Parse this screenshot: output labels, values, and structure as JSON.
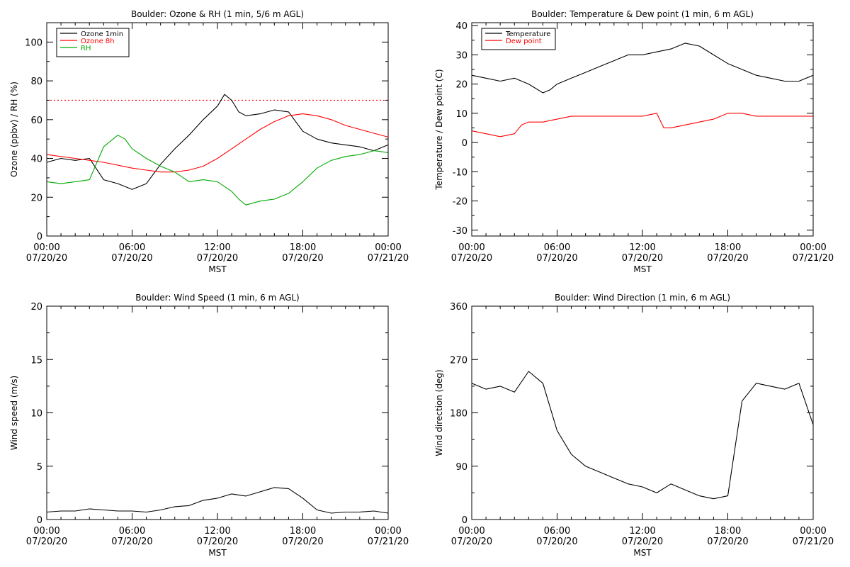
{
  "chart_data": [
    {
      "type": "line",
      "title": "Boulder: Ozone & RH (1 min, 5/6 m AGL)",
      "xlabel": "MST",
      "ylabel": "Ozone (ppbv) / RH (%)",
      "ylim": [
        0,
        110
      ],
      "yticks": [
        0,
        20,
        40,
        60,
        80,
        100
      ],
      "xlim_hours": [
        0,
        24
      ],
      "xticks": [
        {
          "hour": 0,
          "time": "00:00",
          "date": "07/20/20"
        },
        {
          "hour": 6,
          "time": "06:00",
          "date": "07/20/20"
        },
        {
          "hour": 12,
          "time": "12:00",
          "date": "07/20/20"
        },
        {
          "hour": 18,
          "time": "18:00",
          "date": "07/20/20"
        },
        {
          "hour": 24,
          "time": "00:00",
          "date": "07/21/20"
        }
      ],
      "legend": "top-left",
      "reference_line": {
        "y": 70,
        "color": "#ff0000",
        "style": "dotted"
      },
      "series": [
        {
          "name": "Ozone 1min",
          "color": "#000000",
          "x": [
            0,
            1,
            2,
            3,
            4,
            5,
            6,
            7,
            8,
            9,
            10,
            11,
            12,
            12.5,
            13,
            13.5,
            14,
            15,
            16,
            17,
            18,
            19,
            20,
            21,
            22,
            23,
            24
          ],
          "y": [
            38,
            40,
            39,
            40,
            29,
            27,
            24,
            27,
            37,
            45,
            52,
            60,
            67,
            73,
            70,
            64,
            62,
            63,
            65,
            64,
            54,
            50,
            48,
            47,
            46,
            44,
            47
          ]
        },
        {
          "name": "Ozone 8h",
          "color": "#ff0000",
          "x": [
            0,
            2,
            4,
            6,
            7,
            8,
            9,
            10,
            11,
            12,
            13,
            14,
            15,
            16,
            17,
            18,
            19,
            20,
            21,
            22,
            23,
            24
          ],
          "y": [
            42,
            40,
            38,
            35,
            34,
            33,
            33,
            34,
            36,
            40,
            45,
            50,
            55,
            59,
            62,
            63,
            62,
            60,
            57,
            55,
            53,
            51
          ]
        },
        {
          "name": "RH",
          "color": "#00aa00",
          "x": [
            0,
            1,
            2,
            3,
            4,
            5,
            5.5,
            6,
            7,
            8,
            9,
            10,
            11,
            12,
            13,
            13.5,
            14,
            15,
            16,
            17,
            18,
            19,
            20,
            21,
            22,
            23,
            24
          ],
          "y": [
            28,
            27,
            28,
            29,
            46,
            52,
            50,
            45,
            40,
            36,
            33,
            28,
            29,
            28,
            23,
            19,
            16,
            18,
            19,
            22,
            28,
            35,
            39,
            41,
            42,
            44,
            43
          ]
        }
      ]
    },
    {
      "type": "line",
      "title": "Boulder: Temperature & Dew point (1 min, 6 m AGL)",
      "xlabel": "MST",
      "ylabel": "Temperature / Dew point (C)",
      "ylim": [
        -32,
        41
      ],
      "yticks": [
        -30,
        -20,
        -10,
        0,
        10,
        20,
        30,
        40
      ],
      "xlim_hours": [
        0,
        24
      ],
      "xticks": [
        {
          "hour": 0,
          "time": "00:00",
          "date": "07/20/20"
        },
        {
          "hour": 6,
          "time": "06:00",
          "date": "07/20/20"
        },
        {
          "hour": 12,
          "time": "12:00",
          "date": "07/20/20"
        },
        {
          "hour": 18,
          "time": "18:00",
          "date": "07/20/20"
        },
        {
          "hour": 24,
          "time": "00:00",
          "date": "07/21/20"
        }
      ],
      "legend": "top-left",
      "series": [
        {
          "name": "Temperature",
          "color": "#000000",
          "x": [
            0,
            1,
            2,
            3,
            4,
            5,
            5.5,
            6,
            7,
            8,
            9,
            10,
            11,
            12,
            13,
            14,
            15,
            16,
            17,
            18,
            19,
            20,
            21,
            22,
            23,
            24
          ],
          "y": [
            23,
            22,
            21,
            22,
            20,
            17,
            18,
            20,
            22,
            24,
            26,
            28,
            30,
            30,
            31,
            32,
            34,
            33,
            30,
            27,
            25,
            23,
            22,
            21,
            21,
            23
          ]
        },
        {
          "name": "Dew point",
          "color": "#ff0000",
          "x": [
            0,
            1,
            2,
            3,
            3.5,
            4,
            5,
            6,
            7,
            8,
            9,
            10,
            11,
            12,
            13,
            13.5,
            14,
            15,
            16,
            17,
            18,
            19,
            20,
            21,
            22,
            23,
            24
          ],
          "y": [
            4,
            3,
            2,
            3,
            6,
            7,
            7,
            8,
            9,
            9,
            9,
            9,
            9,
            9,
            10,
            5,
            5,
            6,
            7,
            8,
            10,
            10,
            9,
            9,
            9,
            9,
            9
          ]
        }
      ]
    },
    {
      "type": "line",
      "title": "Boulder: Wind Speed (1 min, 6 m AGL)",
      "xlabel": "MST",
      "ylabel": "Wind speed (m/s)",
      "ylim": [
        0,
        20
      ],
      "yticks": [
        0,
        5,
        10,
        15,
        20
      ],
      "xlim_hours": [
        0,
        24
      ],
      "xticks": [
        {
          "hour": 0,
          "time": "00:00",
          "date": "07/20/20"
        },
        {
          "hour": 6,
          "time": "06:00",
          "date": "07/20/20"
        },
        {
          "hour": 12,
          "time": "12:00",
          "date": "07/20/20"
        },
        {
          "hour": 18,
          "time": "18:00",
          "date": "07/20/20"
        },
        {
          "hour": 24,
          "time": "00:00",
          "date": "07/21/20"
        }
      ],
      "series": [
        {
          "color": "#000000",
          "x": [
            0,
            1,
            2,
            3,
            4,
            5,
            6,
            7,
            8,
            9,
            10,
            11,
            12,
            13,
            14,
            15,
            16,
            17,
            18,
            19,
            20,
            21,
            22,
            23,
            24
          ],
          "y": [
            0.7,
            0.8,
            0.8,
            1.0,
            0.9,
            0.8,
            0.8,
            0.7,
            0.9,
            1.2,
            1.3,
            1.8,
            2.0,
            2.4,
            2.2,
            2.6,
            3.0,
            2.9,
            2.0,
            0.9,
            0.6,
            0.7,
            0.7,
            0.8,
            0.6
          ]
        }
      ]
    },
    {
      "type": "line",
      "title": "Boulder: Wind Direction (1 min, 6 m AGL)",
      "xlabel": "MST",
      "ylabel": "Wind direction (deg)",
      "ylim": [
        0,
        360
      ],
      "yticks": [
        0,
        90,
        180,
        270,
        360
      ],
      "xlim_hours": [
        0,
        24
      ],
      "xticks": [
        {
          "hour": 0,
          "time": "00:00",
          "date": "07/20/20"
        },
        {
          "hour": 6,
          "time": "06:00",
          "date": "07/20/20"
        },
        {
          "hour": 12,
          "time": "12:00",
          "date": "07/20/20"
        },
        {
          "hour": 18,
          "time": "18:00",
          "date": "07/20/20"
        },
        {
          "hour": 24,
          "time": "00:00",
          "date": "07/21/20"
        }
      ],
      "series": [
        {
          "color": "#000000",
          "x": [
            0,
            1,
            2,
            3,
            4,
            5,
            6,
            7,
            8,
            9,
            10,
            11,
            12,
            13,
            14,
            15,
            16,
            17,
            18,
            19,
            20,
            21,
            22,
            23,
            24
          ],
          "y": [
            230,
            220,
            225,
            215,
            250,
            230,
            150,
            110,
            90,
            80,
            70,
            60,
            55,
            45,
            60,
            50,
            40,
            35,
            40,
            200,
            230,
            225,
            220,
            230,
            160
          ]
        }
      ]
    }
  ]
}
